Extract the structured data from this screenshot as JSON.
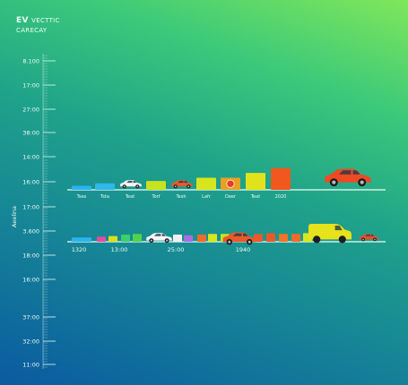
{
  "title": {
    "prefix": "EV",
    "suffix": "VECTTIC",
    "subtitle": "CARECAY"
  },
  "chart_data": {
    "type": "bar",
    "ylabel": "Aeelina",
    "y_ticks": [
      "8.100",
      "17:00",
      "27:00",
      "38:00",
      "14:00",
      "16:00",
      "17:00",
      "3.600",
      "18:00",
      "16:00",
      "37:00",
      "32:00",
      "11:00"
    ],
    "grid": false,
    "row1": {
      "categories": [
        "Tsex",
        "Tsta",
        "Teat",
        "Torf",
        "Tesh",
        "Lafr",
        "Deer",
        "Teat",
        "2020"
      ],
      "values": [
        0.5,
        0.8,
        0.9,
        1.1,
        0.9,
        1.5,
        1.5,
        2.1,
        2.7
      ],
      "colors": [
        "#29b4f0",
        "#2fb8e8",
        "#e0e0e0",
        "#c8e21e",
        "#e85a2a",
        "#d7e51e",
        "#e8a022",
        "#e0e31c",
        "#f0581e"
      ],
      "icons": [
        "none",
        "none",
        "white-car-icon",
        "none",
        "red-car-icon",
        "none",
        "badge-icon",
        "none",
        "none"
      ],
      "hero": "red-car-icon"
    },
    "row2": {
      "values": [
        0.6,
        0.7,
        0.8,
        1.0,
        1.1,
        1.0,
        0.9,
        1.0,
        1.1,
        1.1,
        1.1,
        1.2,
        1.1,
        1.1,
        1.2,
        1.1,
        1.1
      ],
      "colors": [
        "#29b4f0",
        "#e84aa0",
        "#d6e11c",
        "#3ccf6a",
        "#4fd44a",
        "#f0f0f0",
        "#a86ee0",
        "#f06a2a",
        "#d8e61e",
        "#c8e21e",
        "#e85a2a",
        "#e85a2a",
        "#f0742a",
        "#f06a2a",
        "#d8e61e",
        "#3ccf6a",
        "#d8e61e"
      ],
      "timeline_labels": [
        "1320",
        "13:00",
        "25:00",
        "1940"
      ],
      "icons": [
        "white-car-icon",
        "red-car-icon",
        "yellow-van-icon",
        "small-red-car-icon"
      ]
    }
  }
}
